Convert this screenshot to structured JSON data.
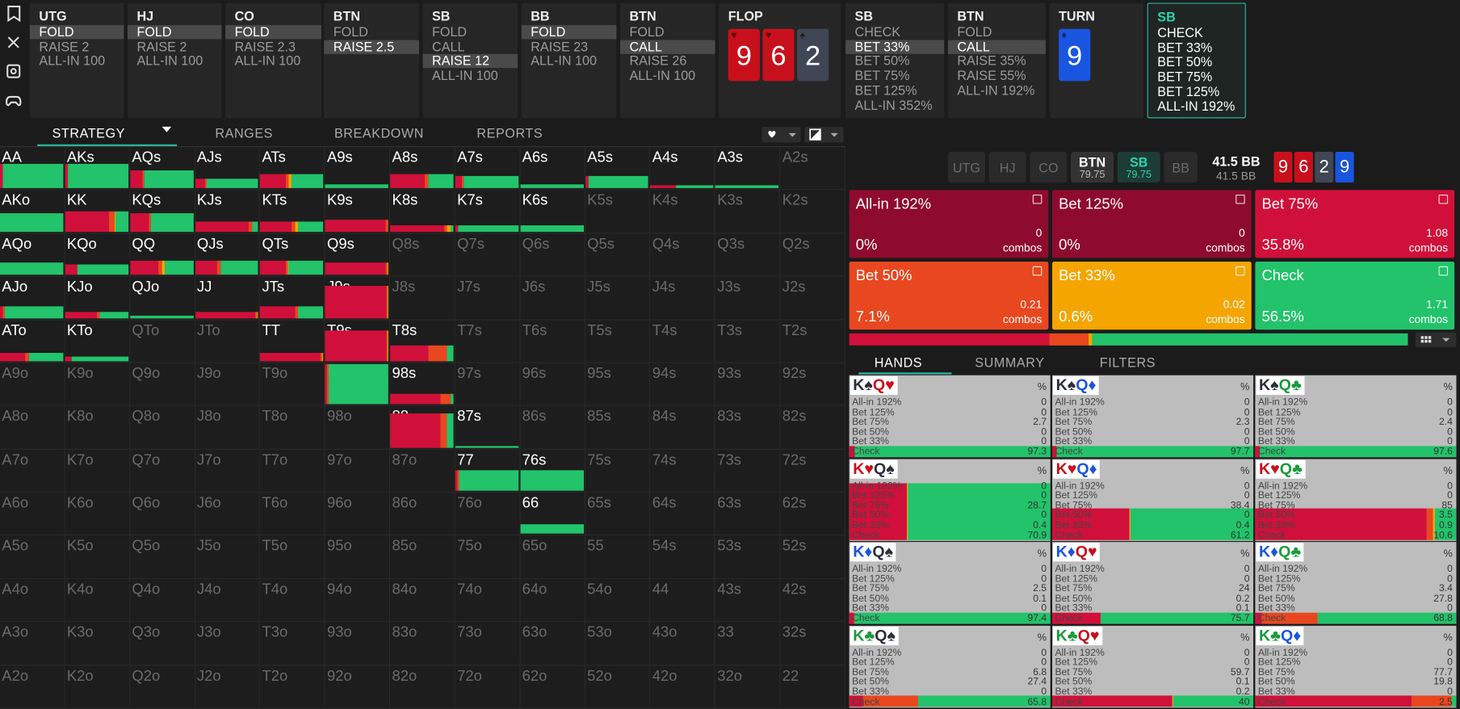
{
  "toolbar": {
    "actions": [
      {
        "title": "UTG",
        "options": [
          "FOLD",
          "RAISE 2",
          "ALL-IN 100"
        ],
        "selected": 0
      },
      {
        "title": "HJ",
        "options": [
          "FOLD",
          "RAISE 2",
          "ALL-IN 100"
        ],
        "selected": 0
      },
      {
        "title": "CO",
        "options": [
          "FOLD",
          "RAISE 2.3",
          "ALL-IN 100"
        ],
        "selected": 0
      },
      {
        "title": "BTN",
        "options": [
          "FOLD",
          "RAISE 2.5"
        ],
        "selected": 1
      },
      {
        "title": "SB",
        "options": [
          "FOLD",
          "CALL",
          "RAISE 12",
          "ALL-IN 100"
        ],
        "selected": 2
      },
      {
        "title": "BB",
        "options": [
          "FOLD",
          "RAISE 23",
          "ALL-IN 100"
        ],
        "selected": 0
      },
      {
        "title": "BTN",
        "options": [
          "FOLD",
          "CALL",
          "RAISE 26",
          "ALL-IN 100"
        ],
        "selected": 1
      },
      {
        "title": "FLOP",
        "cards": [
          {
            "rank": "9",
            "suit": "♥",
            "color": "#c8101c"
          },
          {
            "rank": "6",
            "suit": "♥",
            "color": "#c8101c"
          },
          {
            "rank": "2",
            "suit": "♠",
            "color": "#3f4656"
          }
        ]
      },
      {
        "title": "SB",
        "options": [
          "CHECK",
          "BET 33%",
          "BET 50%",
          "BET 75%",
          "BET 125%",
          "ALL-IN 352%"
        ],
        "selected": 1
      },
      {
        "title": "BTN",
        "options": [
          "FOLD",
          "CALL",
          "RAISE 35%",
          "RAISE 55%",
          "ALL-IN 192%"
        ],
        "selected": 1
      },
      {
        "title": "TURN",
        "cards": [
          {
            "rank": "9",
            "suit": "♦",
            "color": "#1a55e0"
          }
        ]
      },
      {
        "title": "SB",
        "options": [
          "CHECK",
          "BET 33%",
          "BET 50%",
          "BET 75%",
          "BET 125%",
          "ALL-IN 192%"
        ],
        "current": true
      }
    ]
  },
  "tabs": {
    "items": [
      "STRATEGY",
      "RANGES",
      "BREAKDOWN",
      "REPORTS"
    ],
    "active": 0
  },
  "matrix": {
    "colors": [
      "#d0103a",
      "#e9471f",
      "#f5a500",
      "#22c36a"
    ],
    "rows": [
      [
        "AA",
        "AKs",
        "AQs",
        "AJs",
        "ATs",
        "A9s",
        "A8s",
        "A7s",
        "A6s",
        "A5s",
        "A4s",
        "A3s",
        "A2s"
      ],
      [
        "AKo",
        "KK",
        "KQs",
        "KJs",
        "KTs",
        "K9s",
        "K8s",
        "K7s",
        "K6s",
        "K5s",
        "K4s",
        "K3s",
        "K2s"
      ],
      [
        "AQo",
        "KQo",
        "QQ",
        "QJs",
        "QTs",
        "Q9s",
        "Q8s",
        "Q7s",
        "Q6s",
        "Q5s",
        "Q4s",
        "Q3s",
        "Q2s"
      ],
      [
        "AJo",
        "KJo",
        "QJo",
        "JJ",
        "JTs",
        "J9s",
        "J8s",
        "J7s",
        "J6s",
        "J5s",
        "J4s",
        "J3s",
        "J2s"
      ],
      [
        "ATo",
        "KTo",
        "QTo",
        "JTo",
        "TT",
        "T9s",
        "T8s",
        "T7s",
        "T6s",
        "T5s",
        "T4s",
        "T3s",
        "T2s"
      ],
      [
        "A9o",
        "K9o",
        "Q9o",
        "J9o",
        "T9o",
        "99",
        "98s",
        "97s",
        "96s",
        "95s",
        "94s",
        "93s",
        "92s"
      ],
      [
        "A8o",
        "K8o",
        "Q8o",
        "J8o",
        "T8o",
        "98o",
        "88",
        "87s",
        "86s",
        "85s",
        "84s",
        "83s",
        "82s"
      ],
      [
        "A7o",
        "K7o",
        "Q7o",
        "J7o",
        "T7o",
        "97o",
        "87o",
        "77",
        "76s",
        "75s",
        "74s",
        "73s",
        "72s"
      ],
      [
        "A6o",
        "K6o",
        "Q6o",
        "J6o",
        "T6o",
        "96o",
        "86o",
        "76o",
        "66",
        "65s",
        "64s",
        "63s",
        "62s"
      ],
      [
        "A5o",
        "K5o",
        "Q5o",
        "J5o",
        "T5o",
        "95o",
        "85o",
        "75o",
        "65o",
        "55",
        "54s",
        "53s",
        "52s"
      ],
      [
        "A4o",
        "K4o",
        "Q4o",
        "J4o",
        "T4o",
        "94o",
        "84o",
        "74o",
        "64o",
        "54o",
        "44",
        "43s",
        "42s"
      ],
      [
        "A3o",
        "K3o",
        "Q3o",
        "J3o",
        "T3o",
        "93o",
        "83o",
        "73o",
        "63o",
        "53o",
        "43o",
        "33",
        "32s"
      ],
      [
        "A2o",
        "K2o",
        "Q2o",
        "J2o",
        "T2o",
        "92o",
        "82o",
        "72o",
        "62o",
        "52o",
        "42o",
        "32o",
        "22"
      ]
    ],
    "strategy": {
      "AA": {
        "weight": 0.6,
        "mix": [
          5,
          0,
          0,
          95
        ]
      },
      "AKs": {
        "weight": 0.6,
        "mix": [
          4,
          1,
          0,
          95
        ]
      },
      "AQs": {
        "weight": 0.45,
        "mix": [
          20,
          3,
          0,
          77
        ]
      },
      "AJs": {
        "weight": 0.25,
        "mix": [
          15,
          3,
          0,
          82
        ]
      },
      "ATs": {
        "weight": 0.35,
        "mix": [
          40,
          5,
          5,
          50
        ]
      },
      "A9s": {
        "weight": 0.1,
        "mix": [
          0,
          0,
          0,
          100
        ]
      },
      "A8s": {
        "weight": 0.35,
        "mix": [
          55,
          5,
          0,
          40
        ]
      },
      "A7s": {
        "weight": 0.3,
        "mix": [
          10,
          3,
          0,
          87
        ]
      },
      "A6s": {
        "weight": 0.1,
        "mix": [
          0,
          0,
          0,
          100
        ]
      },
      "A5s": {
        "weight": 0.3,
        "mix": [
          5,
          0,
          0,
          95
        ]
      },
      "A4s": {
        "weight": 0.08,
        "mix": [
          40,
          0,
          0,
          60
        ]
      },
      "A3s": {
        "weight": 0.08,
        "mix": [
          0,
          0,
          0,
          100
        ]
      },
      "AKo": {
        "weight": 0.45,
        "mix": [
          0,
          0,
          0,
          100
        ]
      },
      "KK": {
        "weight": 0.5,
        "mix": [
          70,
          8,
          2,
          20
        ]
      },
      "KQs": {
        "weight": 0.45,
        "mix": [
          30,
          3,
          0,
          67
        ]
      },
      "KJs": {
        "weight": 0.25,
        "mix": [
          85,
          5,
          0,
          10
        ]
      },
      "KTs": {
        "weight": 0.25,
        "mix": [
          50,
          5,
          5,
          40
        ]
      },
      "K9s": {
        "weight": 0.3,
        "mix": [
          95,
          5,
          0,
          0
        ]
      },
      "K8s": {
        "weight": 0.15,
        "mix": [
          85,
          5,
          5,
          5
        ]
      },
      "K7s": {
        "weight": 0.15,
        "mix": [
          5,
          0,
          0,
          95
        ]
      },
      "K6s": {
        "weight": 0.15,
        "mix": [
          0,
          0,
          0,
          100
        ]
      },
      "AQo": {
        "weight": 0.3,
        "mix": [
          0,
          0,
          0,
          100
        ]
      },
      "KQo": {
        "weight": 0.25,
        "mix": [
          20,
          0,
          0,
          80
        ]
      },
      "QQ": {
        "weight": 0.35,
        "mix": [
          45,
          5,
          5,
          45
        ]
      },
      "QJs": {
        "weight": 0.35,
        "mix": [
          35,
          5,
          0,
          60
        ]
      },
      "QTs": {
        "weight": 0.35,
        "mix": [
          40,
          3,
          2,
          55
        ]
      },
      "Q9s": {
        "weight": 0.3,
        "mix": [
          95,
          3,
          2,
          0
        ]
      },
      "AJo": {
        "weight": 0.3,
        "mix": [
          5,
          2,
          0,
          93
        ]
      },
      "KJo": {
        "weight": 0.15,
        "mix": [
          50,
          5,
          0,
          45
        ]
      },
      "QJo": {
        "weight": 0.05,
        "mix": [
          0,
          0,
          0,
          100
        ]
      },
      "JJ": {
        "weight": 0.15,
        "mix": [
          95,
          3,
          2,
          0
        ]
      },
      "JTs": {
        "weight": 0.3,
        "mix": [
          55,
          5,
          0,
          40
        ]
      },
      "J9s": {
        "weight": 0.8,
        "mix": [
          97,
          2,
          1,
          0
        ]
      },
      "ATo": {
        "weight": 0.2,
        "mix": [
          40,
          5,
          0,
          55
        ]
      },
      "KTo": {
        "weight": 0.12,
        "mix": [
          10,
          0,
          0,
          90
        ]
      },
      "TT": {
        "weight": 0.2,
        "mix": [
          95,
          3,
          2,
          0
        ]
      },
      "T9s": {
        "weight": 0.75,
        "mix": [
          97,
          2,
          1,
          0
        ]
      },
      "T8s": {
        "weight": 0.4,
        "mix": [
          60,
          30,
          0,
          10
        ]
      },
      "99": {
        "weight": 1.0,
        "mix": [
          2,
          3,
          0,
          95
        ]
      },
      "98s": {
        "weight": 0.25,
        "mix": [
          80,
          15,
          0,
          5
        ]
      },
      "88": {
        "weight": 0.85,
        "mix": [
          80,
          10,
          0,
          10
        ]
      },
      "87s": {
        "weight": 0.05,
        "mix": [
          0,
          0,
          0,
          100
        ]
      },
      "77": {
        "weight": 0.5,
        "mix": [
          3,
          3,
          0,
          94
        ]
      },
      "76s": {
        "weight": 0.5,
        "mix": [
          0,
          0,
          0,
          100
        ]
      },
      "66": {
        "weight": 0.25,
        "mix": [
          0,
          0,
          0,
          100
        ]
      }
    }
  },
  "positions": {
    "items": [
      {
        "name": "UTG",
        "state": "out"
      },
      {
        "name": "HJ",
        "state": "out"
      },
      {
        "name": "CO",
        "state": "out"
      },
      {
        "name": "BTN",
        "stack": "79.75",
        "state": "in"
      },
      {
        "name": "SB",
        "stack": "79.75",
        "state": "acting"
      },
      {
        "name": "BB",
        "state": "out"
      }
    ]
  },
  "pot": {
    "main": "41.5 BB",
    "sub": "41.5 BB"
  },
  "board": [
    {
      "rank": "9",
      "color": "#c8101c"
    },
    {
      "rank": "6",
      "color": "#c8101c"
    },
    {
      "rank": "2",
      "color": "#3f4656"
    },
    {
      "rank": "9",
      "color": "#1a55e0"
    }
  ],
  "tiles": {
    "combos_label": "combos",
    "items": [
      {
        "name": "All-in 192%",
        "freq": 0,
        "freq_label": "0%",
        "combos": "0",
        "color": "#8e0b2e"
      },
      {
        "name": "Bet 125%",
        "freq": 0,
        "freq_label": "0%",
        "combos": "0",
        "color": "#8e0b2e"
      },
      {
        "name": "Bet 75%",
        "freq": 35.8,
        "freq_label": "35.8%",
        "combos": "1.08",
        "color": "#d0103a"
      },
      {
        "name": "Bet 50%",
        "freq": 7.1,
        "freq_label": "7.1%",
        "combos": "0.21",
        "color": "#e9471f"
      },
      {
        "name": "Bet 33%",
        "freq": 0.6,
        "freq_label": "0.6%",
        "combos": "0.02",
        "color": "#f5a500"
      },
      {
        "name": "Check",
        "freq": 56.5,
        "freq_label": "56.5%",
        "combos": "1.71",
        "color": "#22c36a"
      }
    ]
  },
  "panel_tabs": {
    "items": [
      "HANDS",
      "SUMMARY",
      "FILTERS"
    ],
    "active": 0
  },
  "suit_colors": {
    "♠": "#2a2f3a",
    "♥": "#c8101c",
    "♦": "#1a55e0",
    "♣": "#1a9a3a"
  },
  "combos": {
    "percent_label": "%",
    "row_labels": [
      "All-in 192%",
      "Bet 125%",
      "Bet 75%",
      "Bet 50%",
      "Bet 33%",
      "Check"
    ],
    "colors": [
      "#8e0b2e",
      "#8e0b2e",
      "#d0103a",
      "#e9471f",
      "#f5a500",
      "#22c36a"
    ],
    "items": [
      {
        "cards": [
          "K♠",
          "Q♥"
        ],
        "values": [
          0,
          0,
          2.7,
          0,
          0,
          97.3
        ],
        "weight": 0.02
      },
      {
        "cards": [
          "K♠",
          "Q♦"
        ],
        "values": [
          0,
          0,
          2.3,
          0,
          0,
          97.7
        ],
        "weight": 0.02
      },
      {
        "cards": [
          "K♠",
          "Q♣"
        ],
        "values": [
          0,
          0,
          2.4,
          0,
          0,
          97.6
        ],
        "weight": 0.02
      },
      {
        "cards": [
          "K♥",
          "Q♠"
        ],
        "values": [
          0,
          0,
          28.7,
          0,
          0.4,
          70.9
        ],
        "weight": 0.95
      },
      {
        "cards": [
          "K♥",
          "Q♦"
        ],
        "values": [
          0,
          0,
          38.4,
          0,
          0.4,
          61.2
        ],
        "weight": 0.45
      },
      {
        "cards": [
          "K♥",
          "Q♣"
        ],
        "values": [
          0,
          0,
          85,
          3.5,
          0.9,
          10.6
        ],
        "weight": 0.45
      },
      {
        "cards": [
          "K♦",
          "Q♠"
        ],
        "values": [
          0,
          0,
          2.5,
          0.1,
          0,
          97.4
        ],
        "weight": 0.02
      },
      {
        "cards": [
          "K♦",
          "Q♥"
        ],
        "values": [
          0,
          0,
          24,
          0.2,
          0.1,
          75.7
        ],
        "weight": 0.02
      },
      {
        "cards": [
          "K♦",
          "Q♣"
        ],
        "values": [
          0,
          0,
          3.4,
          27.8,
          0,
          68.8
        ],
        "weight": 0.02
      },
      {
        "cards": [
          "K♣",
          "Q♠"
        ],
        "values": [
          0,
          0,
          6.8,
          27.4,
          0,
          65.8
        ],
        "weight": 0.02
      },
      {
        "cards": [
          "K♣",
          "Q♥"
        ],
        "values": [
          0,
          0,
          59.7,
          0.1,
          0.2,
          40
        ],
        "weight": 0.02
      },
      {
        "cards": [
          "K♣",
          "Q♦"
        ],
        "values": [
          0,
          0,
          77.7,
          19.8,
          0,
          2.5
        ],
        "weight": 0.02
      }
    ]
  }
}
